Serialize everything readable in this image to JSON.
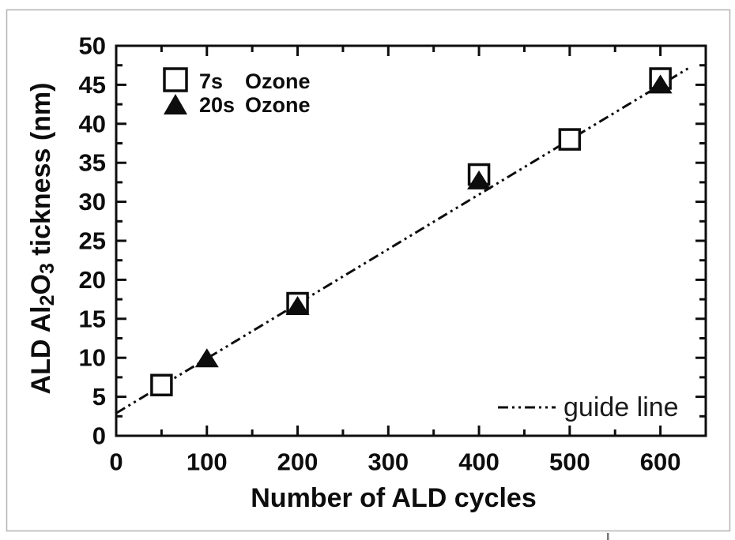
{
  "figure": {
    "background": "#ffffff",
    "border_color": "#b3b3b3",
    "ink_color": "#0d0d0d"
  },
  "legend": {
    "series1_time": "7s",
    "series1_name": "Ozone",
    "series2_time": "20s",
    "series2_name": "Ozone"
  },
  "chart_data": {
    "type": "scatter",
    "title": "",
    "xlabel": "Number of ALD cycles",
    "ylabel": "ALD Al₂O₃ tickness (nm)",
    "ylabel_segments": [
      {
        "t": "ALD Al"
      },
      {
        "t": "2",
        "sub": true
      },
      {
        "t": "O"
      },
      {
        "t": "3",
        "sub": true
      },
      {
        "t": " tickness (nm)"
      }
    ],
    "xlim": [
      0,
      650
    ],
    "ylim": [
      0,
      50
    ],
    "x_major_ticks": [
      0,
      100,
      200,
      300,
      400,
      500,
      600
    ],
    "x_minor_step": 50,
    "y_major_ticks": [
      0,
      5,
      10,
      15,
      20,
      25,
      30,
      35,
      40,
      45,
      50
    ],
    "y_minor_step": 2.5,
    "grid": false,
    "legend_position": "top-left",
    "series": [
      {
        "name": "7s Ozone",
        "marker": "open-square",
        "points": [
          [
            50,
            6.5
          ],
          [
            200,
            17.0
          ],
          [
            400,
            33.5
          ],
          [
            500,
            38.0
          ],
          [
            600,
            45.8
          ]
        ]
      },
      {
        "name": "20s Ozone",
        "marker": "filled-triangle",
        "points": [
          [
            100,
            10.0
          ],
          [
            200,
            16.7
          ],
          [
            400,
            32.8
          ],
          [
            600,
            45.1
          ]
        ]
      }
    ],
    "guide_line": {
      "label": "guide line",
      "x": [
        0,
        632
      ],
      "y": [
        2.9,
        47.2
      ],
      "style": "dash-dot-dot"
    }
  }
}
